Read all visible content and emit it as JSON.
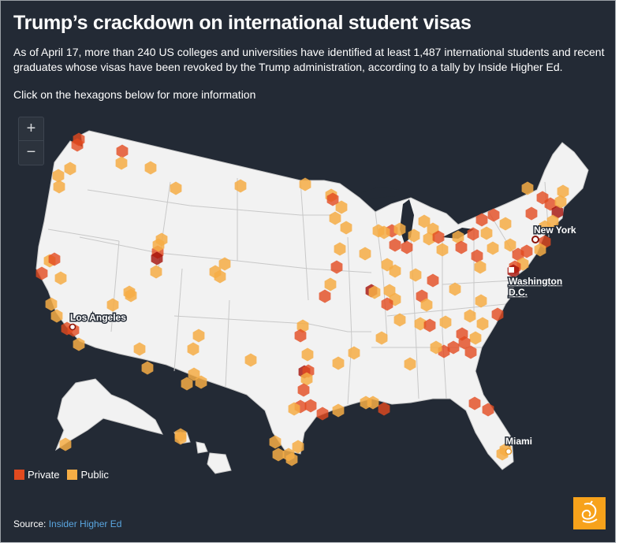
{
  "header": {
    "title": "Trump’s crackdown on international student visas",
    "subtitle": "As of April 17, more than 240 US colleges and universities have identified at least 1,487 international students and recent graduates whose visas have been revoked by the Trump administration, according to a tally by Inside Higher Ed.",
    "instruction": "Click on the hexagons below for more information"
  },
  "zoom": {
    "in_label": "+",
    "out_label": "−"
  },
  "cities": {
    "new_york": "New York",
    "washington_1": "Washington",
    "washington_2": "D.C.",
    "los_angeles": "Los Angeles",
    "miami": "Miami"
  },
  "legend": {
    "private_label": "Private",
    "public_label": "Public"
  },
  "colors": {
    "background": "#232a35",
    "land": "#f2f2f2",
    "private": "#e24a1f",
    "public": "#f6ad45",
    "dark_hex": "#a40f08"
  },
  "source": {
    "prefix": "Source: ",
    "link_text": "Insider Higher Ed"
  }
}
